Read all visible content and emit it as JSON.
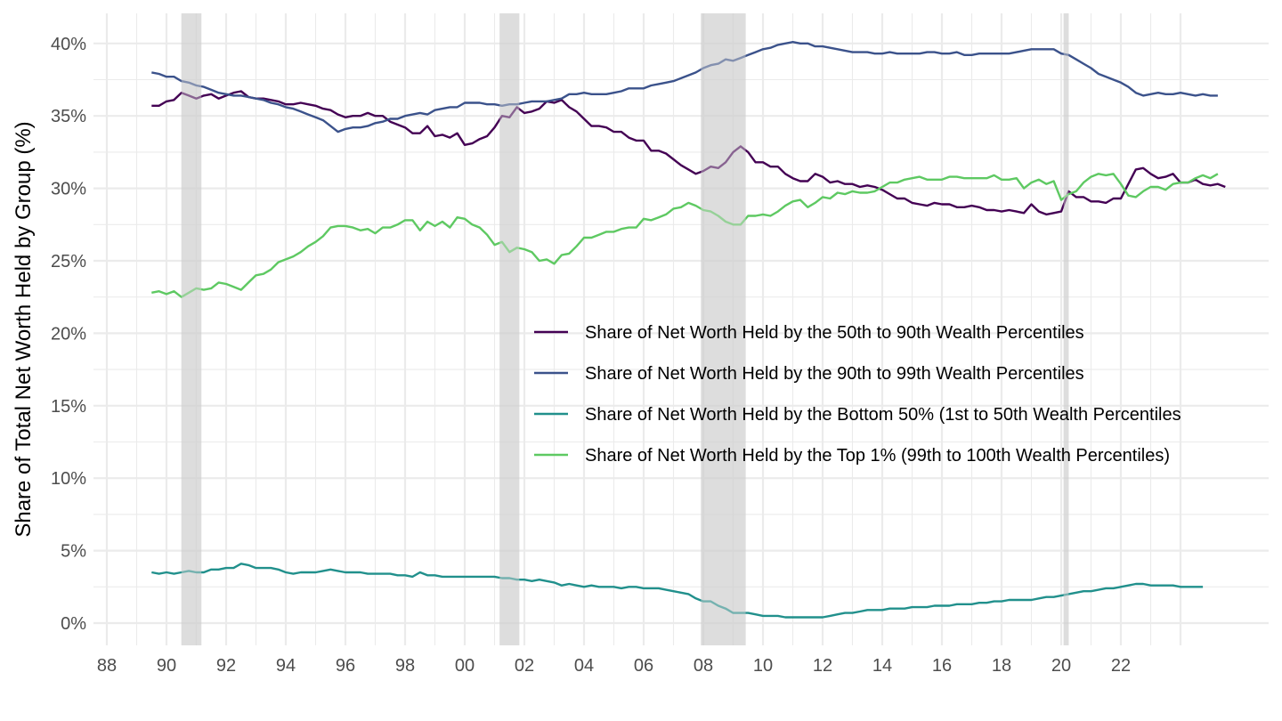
{
  "chart_data": {
    "type": "line",
    "title": "",
    "xlabel": "",
    "ylabel": "Share of Total Net Worth Held by Group (%)",
    "xlim": [
      1987.5,
      2026.9
    ],
    "ylim": [
      -1.5,
      42
    ],
    "grid": true,
    "legend_position": "center-right",
    "x_ticks": [
      1988,
      1990,
      1992,
      1994,
      1996,
      1998,
      2000,
      2002,
      2004,
      2006,
      2008,
      2010,
      2012,
      2014,
      2016,
      2018,
      2020,
      2022
    ],
    "x_tick_labels": [
      "88",
      "90",
      "92",
      "94",
      "96",
      "98",
      "00",
      "02",
      "04",
      "06",
      "08",
      "10",
      "12",
      "14",
      "16",
      "18",
      "20",
      "22"
    ],
    "y_ticks": [
      0,
      5,
      10,
      15,
      20,
      25,
      30,
      35,
      40
    ],
    "y_tick_labels": [
      "0%",
      "5%",
      "10%",
      "15%",
      "20%",
      "25%",
      "30%",
      "35%",
      "40%"
    ],
    "recessions": [
      {
        "start": 1990.5,
        "end": 1991.17
      },
      {
        "start": 2001.17,
        "end": 2001.83
      },
      {
        "start": 2007.92,
        "end": 2009.42
      },
      {
        "start": 2020.08,
        "end": 2020.25
      }
    ],
    "x_start": 1989.5,
    "x_step": 0.25,
    "series": [
      {
        "name": "Share of Net Worth Held by the 50th to 90th Wealth Percentiles",
        "color": "#440154",
        "values": [
          35.7,
          35.7,
          36.0,
          36.1,
          36.6,
          36.4,
          36.2,
          36.4,
          36.5,
          36.2,
          36.4,
          36.6,
          36.7,
          36.3,
          36.2,
          36.2,
          36.1,
          36.0,
          35.8,
          35.8,
          35.9,
          35.8,
          35.7,
          35.5,
          35.4,
          35.1,
          34.9,
          35.0,
          35.0,
          35.2,
          35.0,
          35.0,
          34.6,
          34.4,
          34.2,
          33.8,
          33.8,
          34.3,
          33.6,
          33.7,
          33.5,
          33.8,
          33.0,
          33.1,
          33.4,
          33.6,
          34.2,
          35.0,
          34.9,
          35.6,
          35.2,
          35.3,
          35.5,
          36.0,
          35.9,
          36.1,
          35.6,
          35.3,
          34.8,
          34.3,
          34.3,
          34.2,
          33.9,
          33.9,
          33.5,
          33.3,
          33.3,
          32.6,
          32.6,
          32.4,
          32.0,
          31.6,
          31.3,
          31.0,
          31.2,
          31.5,
          31.4,
          31.8,
          32.5,
          32.9,
          32.5,
          31.8,
          31.8,
          31.5,
          31.5,
          31.0,
          30.7,
          30.5,
          30.5,
          31.0,
          30.8,
          30.4,
          30.5,
          30.3,
          30.3,
          30.1,
          30.2,
          30.1,
          29.9,
          29.6,
          29.3,
          29.3,
          29.0,
          28.9,
          28.8,
          29.0,
          28.9,
          28.9,
          28.7,
          28.7,
          28.8,
          28.7,
          28.5,
          28.5,
          28.4,
          28.5,
          28.4,
          28.3,
          28.9,
          28.4,
          28.2,
          28.3,
          28.4,
          29.8,
          29.4,
          29.4,
          29.1,
          29.1,
          29.0,
          29.3,
          29.3,
          30.3,
          31.3,
          31.4,
          31.0,
          30.7,
          30.8,
          31.0,
          30.4,
          30.4,
          30.6,
          30.3,
          30.2,
          30.3,
          30.1
        ]
      },
      {
        "name": "Share of Net Worth Held by the 90th to 99th Wealth Percentiles",
        "color": "#3b528b",
        "values": [
          38.0,
          37.9,
          37.7,
          37.7,
          37.4,
          37.3,
          37.1,
          37.0,
          36.8,
          36.6,
          36.5,
          36.4,
          36.4,
          36.3,
          36.2,
          36.1,
          35.9,
          35.8,
          35.6,
          35.5,
          35.3,
          35.1,
          34.9,
          34.7,
          34.3,
          33.9,
          34.1,
          34.2,
          34.2,
          34.3,
          34.5,
          34.6,
          34.8,
          34.8,
          35.0,
          35.1,
          35.2,
          35.1,
          35.4,
          35.5,
          35.6,
          35.6,
          35.9,
          35.9,
          35.9,
          35.8,
          35.8,
          35.7,
          35.8,
          35.8,
          35.9,
          36.0,
          36.0,
          36.0,
          36.1,
          36.2,
          36.5,
          36.5,
          36.6,
          36.5,
          36.5,
          36.5,
          36.6,
          36.7,
          36.9,
          36.9,
          36.9,
          37.1,
          37.2,
          37.3,
          37.4,
          37.6,
          37.8,
          38.0,
          38.3,
          38.5,
          38.6,
          38.9,
          38.8,
          39.0,
          39.2,
          39.4,
          39.6,
          39.7,
          39.9,
          40.0,
          40.1,
          40.0,
          40.0,
          39.8,
          39.8,
          39.7,
          39.6,
          39.5,
          39.4,
          39.4,
          39.4,
          39.3,
          39.3,
          39.4,
          39.3,
          39.3,
          39.3,
          39.3,
          39.4,
          39.4,
          39.3,
          39.3,
          39.4,
          39.2,
          39.2,
          39.3,
          39.3,
          39.3,
          39.3,
          39.3,
          39.4,
          39.5,
          39.6,
          39.6,
          39.6,
          39.6,
          39.3,
          39.2,
          38.9,
          38.6,
          38.3,
          37.9,
          37.7,
          37.5,
          37.3,
          37.0,
          36.6,
          36.4,
          36.5,
          36.6,
          36.5,
          36.5,
          36.6,
          36.5,
          36.4,
          36.5,
          36.4,
          36.4
        ]
      },
      {
        "name": "Share of Net Worth Held by the Bottom 50% (1st to 50th Wealth Percentiles",
        "color": "#21908c",
        "values": [
          3.5,
          3.4,
          3.5,
          3.4,
          3.5,
          3.6,
          3.5,
          3.5,
          3.7,
          3.7,
          3.8,
          3.8,
          4.1,
          4.0,
          3.8,
          3.8,
          3.8,
          3.7,
          3.5,
          3.4,
          3.5,
          3.5,
          3.5,
          3.6,
          3.7,
          3.6,
          3.5,
          3.5,
          3.5,
          3.4,
          3.4,
          3.4,
          3.4,
          3.3,
          3.3,
          3.2,
          3.5,
          3.3,
          3.3,
          3.2,
          3.2,
          3.2,
          3.2,
          3.2,
          3.2,
          3.2,
          3.2,
          3.1,
          3.1,
          3.0,
          3.0,
          2.9,
          3.0,
          2.9,
          2.8,
          2.6,
          2.7,
          2.6,
          2.5,
          2.6,
          2.5,
          2.5,
          2.5,
          2.4,
          2.5,
          2.5,
          2.4,
          2.4,
          2.4,
          2.3,
          2.2,
          2.1,
          2.0,
          1.7,
          1.5,
          1.5,
          1.2,
          1.0,
          0.7,
          0.7,
          0.7,
          0.6,
          0.5,
          0.5,
          0.5,
          0.4,
          0.4,
          0.4,
          0.4,
          0.4,
          0.4,
          0.5,
          0.6,
          0.7,
          0.7,
          0.8,
          0.9,
          0.9,
          0.9,
          1.0,
          1.0,
          1.0,
          1.1,
          1.1,
          1.1,
          1.2,
          1.2,
          1.2,
          1.3,
          1.3,
          1.3,
          1.4,
          1.4,
          1.5,
          1.5,
          1.6,
          1.6,
          1.6,
          1.6,
          1.7,
          1.8,
          1.8,
          1.9,
          2.0,
          2.1,
          2.2,
          2.2,
          2.3,
          2.4,
          2.4,
          2.5,
          2.6,
          2.7,
          2.7,
          2.6,
          2.6,
          2.6,
          2.6,
          2.5,
          2.5,
          2.5,
          2.5
        ]
      },
      {
        "name": "Share of Net Worth Held by the Top 1% (99th to 100th Wealth Percentiles)",
        "color": "#5ec962",
        "values": [
          22.8,
          22.9,
          22.7,
          22.9,
          22.5,
          22.8,
          23.1,
          23.0,
          23.1,
          23.5,
          23.4,
          23.2,
          23.0,
          23.5,
          24.0,
          24.1,
          24.4,
          24.9,
          25.1,
          25.3,
          25.6,
          26.0,
          26.3,
          26.7,
          27.3,
          27.4,
          27.4,
          27.3,
          27.1,
          27.2,
          26.9,
          27.3,
          27.3,
          27.5,
          27.8,
          27.8,
          27.1,
          27.7,
          27.4,
          27.7,
          27.3,
          28.0,
          27.9,
          27.5,
          27.3,
          26.8,
          26.1,
          26.3,
          25.6,
          25.9,
          25.8,
          25.6,
          25.0,
          25.1,
          24.8,
          25.4,
          25.5,
          26.0,
          26.6,
          26.6,
          26.8,
          27.0,
          27.0,
          27.2,
          27.3,
          27.3,
          27.9,
          27.8,
          28.0,
          28.2,
          28.6,
          28.7,
          29.0,
          28.8,
          28.5,
          28.4,
          28.1,
          27.7,
          27.5,
          27.5,
          28.1,
          28.1,
          28.2,
          28.1,
          28.4,
          28.8,
          29.1,
          29.2,
          28.7,
          29.0,
          29.4,
          29.3,
          29.7,
          29.6,
          29.8,
          29.7,
          29.7,
          29.8,
          30.1,
          30.4,
          30.4,
          30.6,
          30.7,
          30.8,
          30.6,
          30.6,
          30.6,
          30.8,
          30.8,
          30.7,
          30.7,
          30.7,
          30.7,
          30.9,
          30.6,
          30.6,
          30.7,
          30.0,
          30.4,
          30.6,
          30.3,
          30.5,
          29.2,
          29.6,
          29.8,
          30.4,
          30.8,
          31.0,
          30.9,
          31.0,
          30.3,
          29.5,
          29.4,
          29.8,
          30.1,
          30.1,
          29.9,
          30.3,
          30.4,
          30.4,
          30.7,
          30.9,
          30.7,
          31.0
        ]
      }
    ]
  }
}
